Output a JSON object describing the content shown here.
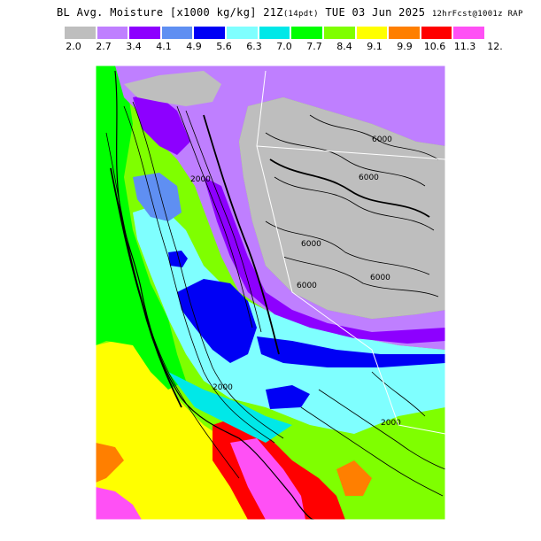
{
  "title": {
    "main": "BL Avg. Moisture [x1000 kg/kg] 21Z",
    "pdt": "(14pdt)",
    "date": "TUE 03 Jun 2025",
    "forecast": "12hrFcst@1001z RAP"
  },
  "legend": {
    "ticks": [
      "2.0",
      "2.7",
      "3.4",
      "4.1",
      "4.9",
      "5.6",
      "6.3",
      "7.0",
      "7.7",
      "8.4",
      "9.1",
      "9.9",
      "10.6",
      "11.3",
      "12."
    ],
    "colors": [
      "#bebebe",
      "#bf7fff",
      "#8d00ff",
      "#5f8ff2",
      "#0000f5",
      "#7fffff",
      "#00e8e8",
      "#00ff00",
      "#7fff00",
      "#ffff00",
      "#ff7f00",
      "#ff0000",
      "#ff50f5"
    ]
  },
  "contour_labels": [
    "6000",
    "6000",
    "6000",
    "6000",
    "6000",
    "2000",
    "2000",
    "2000"
  ]
}
